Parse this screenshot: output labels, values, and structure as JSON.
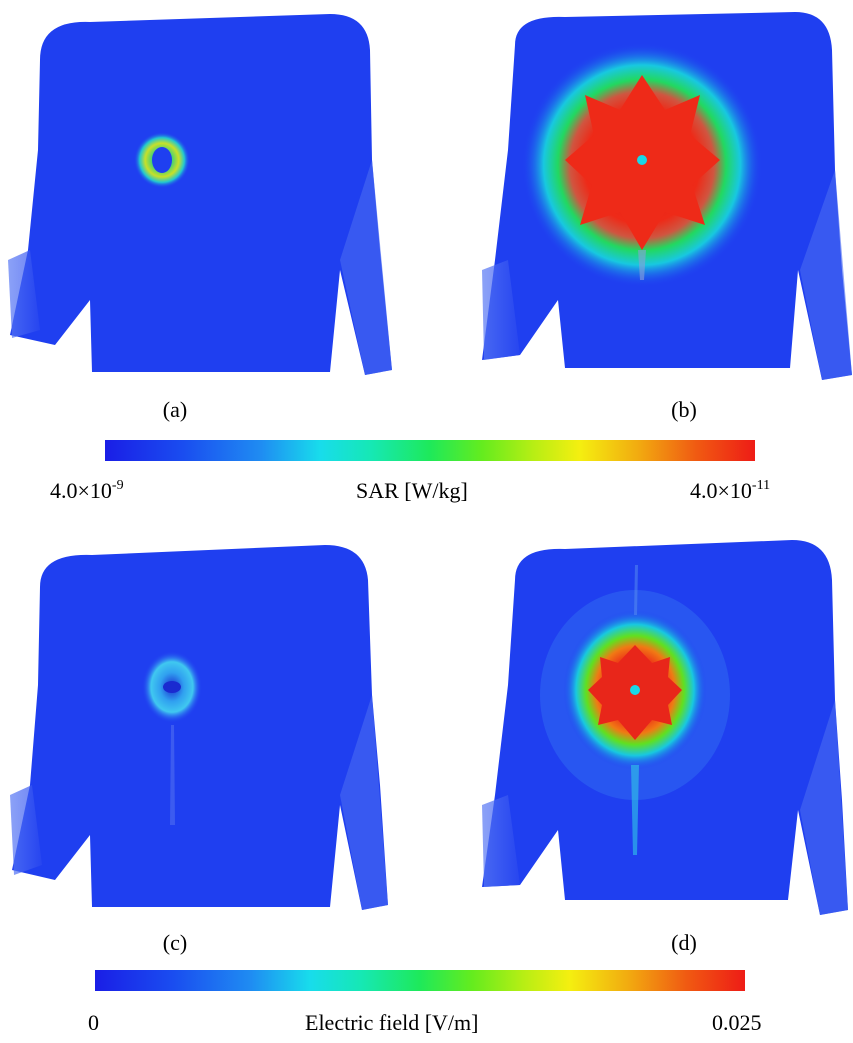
{
  "panels": [
    {
      "id": "a",
      "label": "(a)"
    },
    {
      "id": "b",
      "label": "(b)"
    },
    {
      "id": "c",
      "label": "(c)"
    },
    {
      "id": "d",
      "label": "(d)"
    }
  ],
  "colorbar_sar": {
    "title": "SAR [W/kg]",
    "min_mantissa": "4.0×10",
    "min_exponent": "-9",
    "max_mantissa": "4.0×10",
    "max_exponent": "-11"
  },
  "colorbar_efield": {
    "title": "Electric field [V/m]",
    "min": "0",
    "max": "0.025"
  },
  "colors": {
    "body_blue": "#1f3ff0",
    "hot_red": "#e8261a",
    "mid_green": "#22e060",
    "cyan": "#18d8e8"
  }
}
